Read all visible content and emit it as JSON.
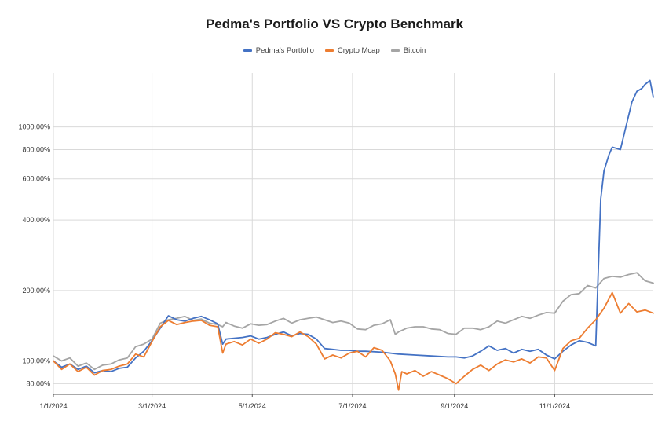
{
  "chart_data": {
    "type": "line",
    "title": "Pedma's Portfolio VS Crypto Benchmark",
    "xlabel": "",
    "ylabel": "",
    "y_scale": "log",
    "ylim": [
      72,
      1700
    ],
    "x_range": [
      "1/1/2024",
      "12/31/2024"
    ],
    "y_ticks": [
      {
        "value": 80,
        "label": "80.00%"
      },
      {
        "value": 100,
        "label": "100.00%"
      },
      {
        "value": 200,
        "label": "200.00%"
      },
      {
        "value": 400,
        "label": "400.00%"
      },
      {
        "value": 600,
        "label": "600.00%"
      },
      {
        "value": 800,
        "label": "800.00%"
      },
      {
        "value": 1000,
        "label": "1000.00%"
      }
    ],
    "x_ticks": [
      {
        "day": 0,
        "label": "1/1/2024"
      },
      {
        "day": 60,
        "label": "3/1/2024"
      },
      {
        "day": 121,
        "label": "5/1/2024"
      },
      {
        "day": 182,
        "label": "7/1/2024"
      },
      {
        "day": 244,
        "label": "9/1/2024"
      },
      {
        "day": 305,
        "label": "11/1/2024"
      }
    ],
    "legend_position": "top-center",
    "series": [
      {
        "name": "Pedma's Portfolio",
        "color": "#4472c4",
        "x": [
          0,
          5,
          10,
          15,
          20,
          25,
          30,
          35,
          40,
          45,
          50,
          55,
          60,
          65,
          70,
          75,
          80,
          85,
          90,
          95,
          100,
          103,
          105,
          110,
          115,
          120,
          125,
          130,
          135,
          140,
          145,
          150,
          155,
          160,
          165,
          170,
          175,
          180,
          185,
          190,
          200,
          210,
          220,
          230,
          240,
          245,
          250,
          255,
          260,
          265,
          270,
          275,
          280,
          285,
          290,
          295,
          300,
          305,
          310,
          315,
          320,
          325,
          330,
          333,
          335,
          338,
          340,
          345,
          348,
          352,
          355,
          358,
          360,
          363,
          365
        ],
        "values": [
          100,
          94,
          97,
          92,
          95,
          89,
          91,
          90,
          93,
          94,
          103,
          110,
          122,
          138,
          156,
          150,
          148,
          152,
          155,
          150,
          144,
          118,
          124,
          125,
          126,
          128,
          124,
          126,
          130,
          133,
          128,
          131,
          130,
          124,
          113,
          112,
          111,
          111,
          110,
          110,
          109,
          107,
          106,
          105,
          104,
          104,
          103,
          105,
          110,
          116,
          111,
          113,
          108,
          112,
          110,
          112,
          106,
          102,
          110,
          117,
          122,
          120,
          116,
          490,
          650,
          760,
          820,
          800,
          980,
          1280,
          1420,
          1460,
          1520,
          1580,
          1340
        ]
      },
      {
        "name": "Crypto Mcap",
        "color": "#ed7d31",
        "x": [
          0,
          5,
          10,
          15,
          20,
          25,
          30,
          35,
          40,
          45,
          50,
          55,
          60,
          65,
          70,
          75,
          80,
          85,
          90,
          95,
          100,
          103,
          105,
          110,
          115,
          120,
          125,
          130,
          135,
          140,
          145,
          150,
          155,
          160,
          165,
          170,
          175,
          180,
          185,
          190,
          195,
          200,
          205,
          208,
          210,
          212,
          215,
          220,
          225,
          230,
          235,
          240,
          245,
          250,
          255,
          260,
          265,
          270,
          275,
          280,
          285,
          290,
          295,
          300,
          305,
          310,
          315,
          320,
          325,
          330,
          335,
          340,
          345,
          350,
          355,
          360,
          365
        ],
        "values": [
          100,
          92,
          97,
          90,
          94,
          87,
          91,
          92,
          95,
          97,
          107,
          104,
          121,
          140,
          149,
          143,
          146,
          148,
          149,
          142,
          140,
          108,
          118,
          121,
          117,
          124,
          119,
          124,
          132,
          130,
          127,
          133,
          127,
          118,
          102,
          106,
          103,
          108,
          110,
          104,
          114,
          111,
          100,
          88,
          75,
          90,
          88,
          91,
          86,
          90,
          87,
          84,
          80,
          86,
          92,
          96,
          91,
          97,
          101,
          99,
          102,
          98,
          104,
          103,
          91,
          113,
          122,
          125,
          138,
          150,
          168,
          196,
          160,
          176,
          162,
          165,
          160
        ]
      },
      {
        "name": "Bitcoin",
        "color": "#a5a5a5",
        "x": [
          0,
          5,
          10,
          15,
          20,
          25,
          30,
          35,
          40,
          45,
          50,
          55,
          60,
          65,
          70,
          75,
          80,
          85,
          90,
          95,
          100,
          103,
          105,
          110,
          115,
          120,
          125,
          130,
          135,
          140,
          145,
          150,
          155,
          160,
          165,
          170,
          175,
          180,
          185,
          190,
          195,
          200,
          205,
          208,
          210,
          215,
          220,
          225,
          230,
          235,
          240,
          245,
          250,
          255,
          260,
          265,
          270,
          275,
          280,
          285,
          290,
          295,
          300,
          305,
          310,
          315,
          320,
          325,
          330,
          335,
          340,
          345,
          350,
          355,
          360,
          365
        ],
        "values": [
          105,
          100,
          103,
          95,
          98,
          92,
          96,
          97,
          101,
          103,
          115,
          118,
          124,
          145,
          150,
          152,
          155,
          149,
          151,
          145,
          143,
          140,
          146,
          141,
          138,
          144,
          142,
          143,
          148,
          152,
          145,
          150,
          152,
          154,
          150,
          146,
          148,
          145,
          137,
          136,
          142,
          144,
          150,
          130,
          133,
          138,
          140,
          140,
          137,
          136,
          131,
          130,
          138,
          138,
          136,
          140,
          148,
          145,
          150,
          155,
          152,
          157,
          161,
          160,
          180,
          192,
          194,
          210,
          205,
          225,
          230,
          228,
          234,
          238,
          220,
          215
        ]
      }
    ]
  }
}
